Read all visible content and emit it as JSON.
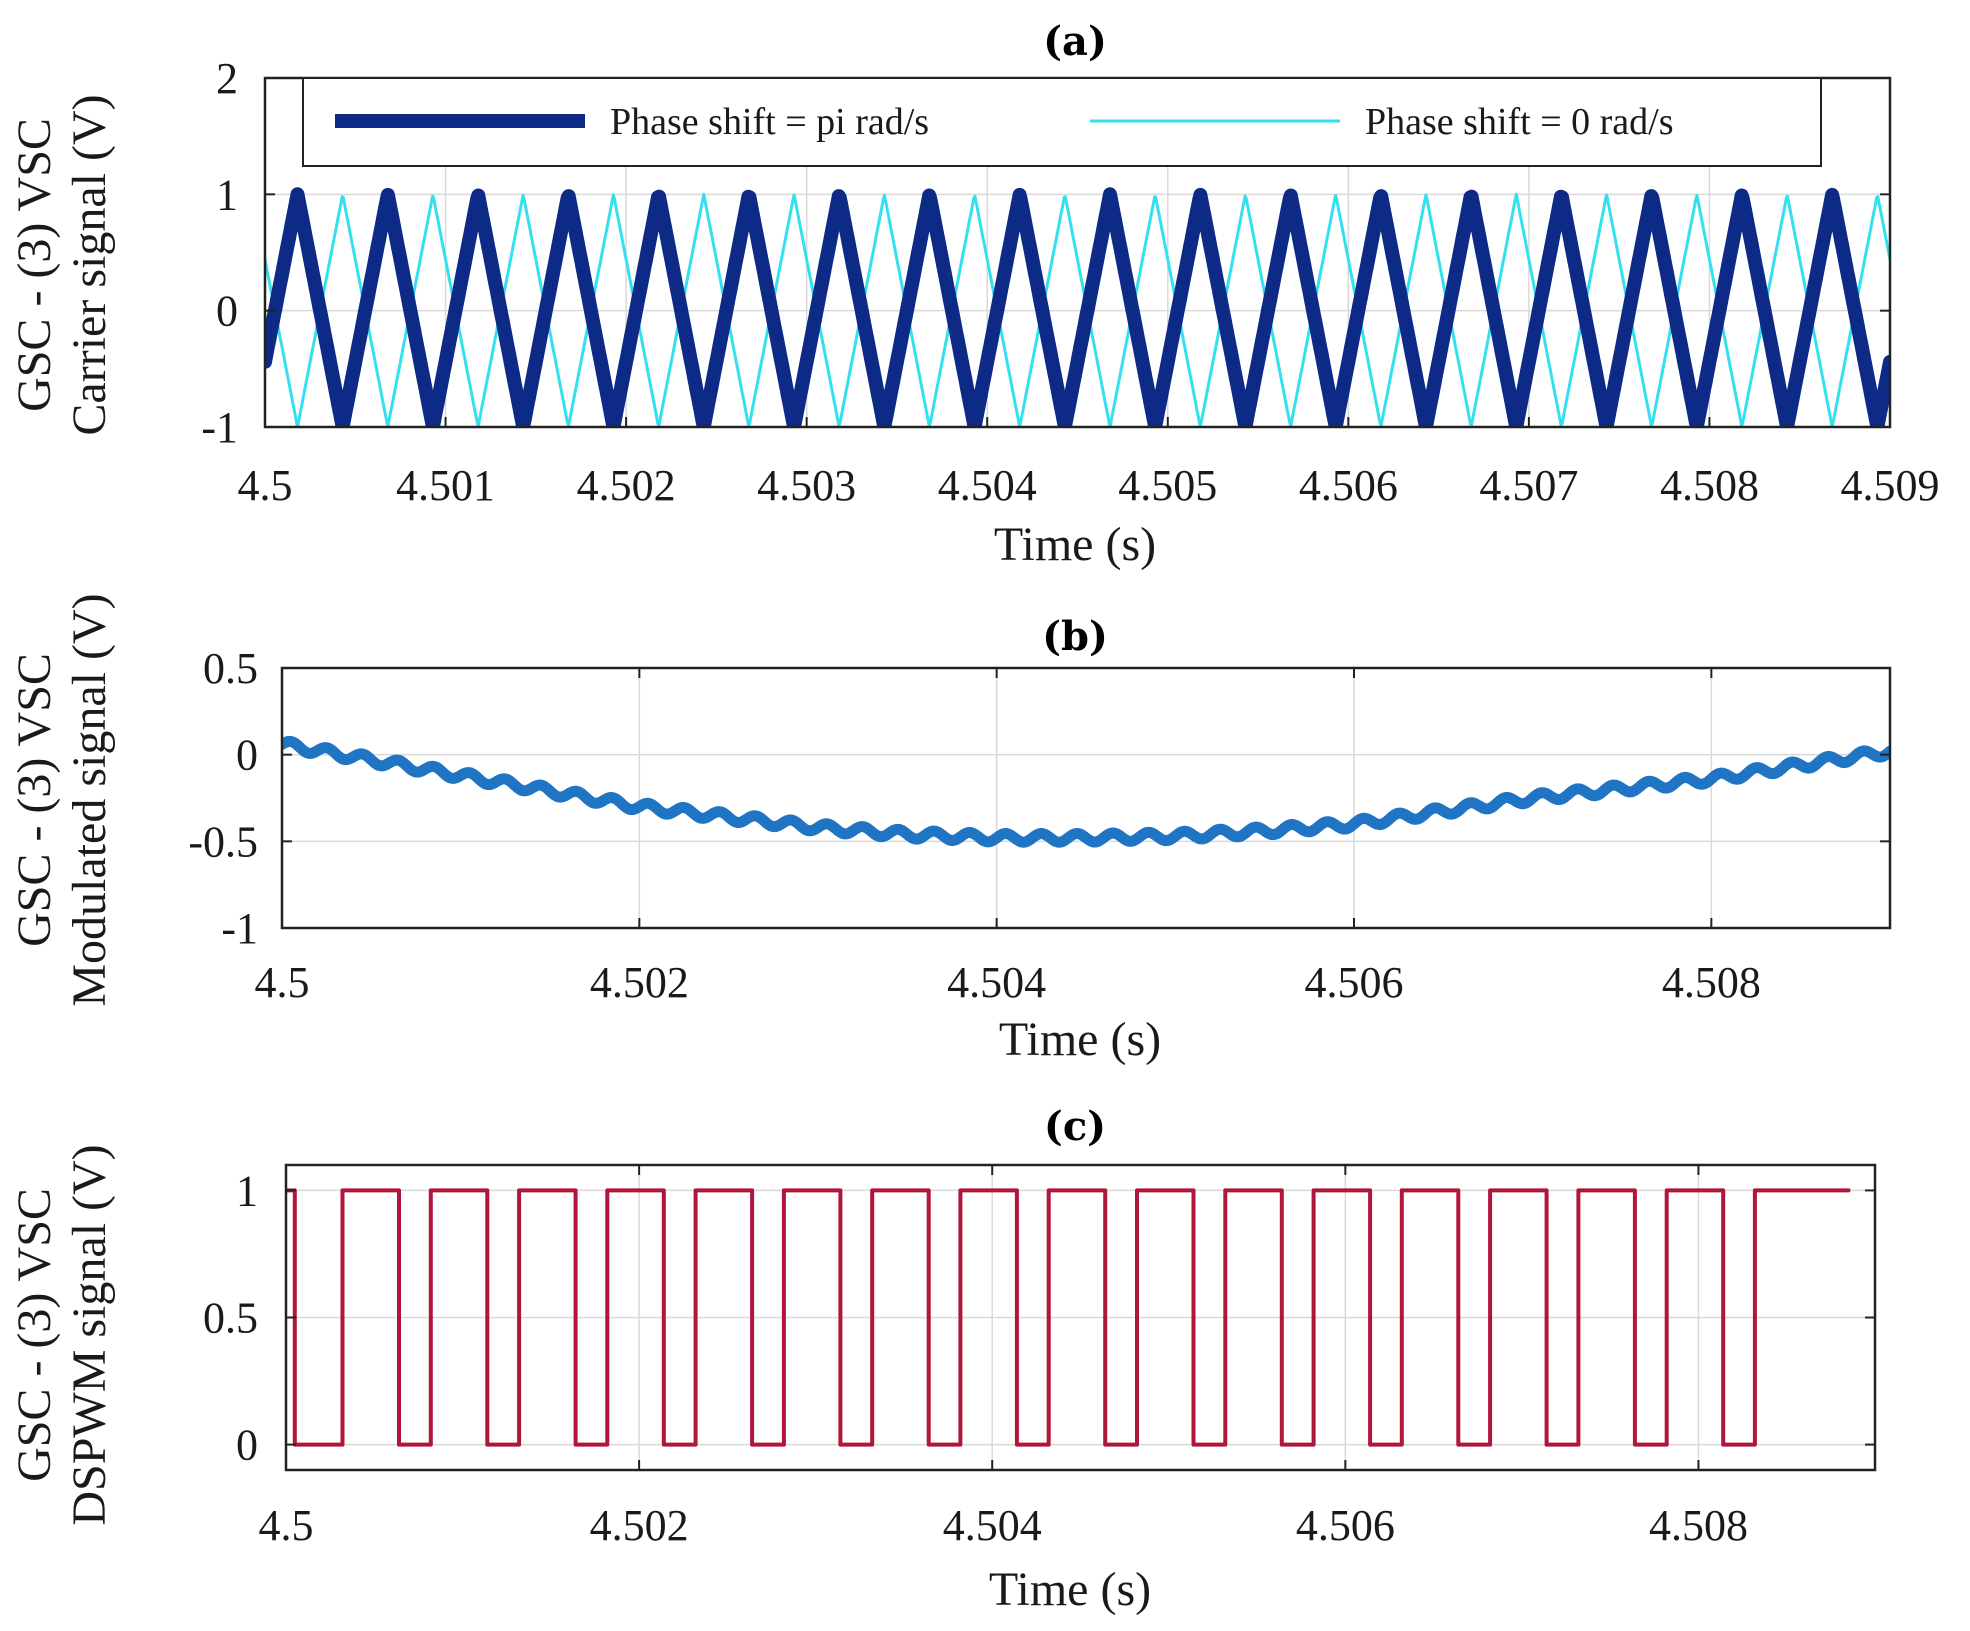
{
  "chart_data": [
    {
      "id": "a",
      "type": "line",
      "title": "(a)",
      "xlabel": "Time (s)",
      "ylabel_lines": [
        "GSC - (3) VSC",
        "Carrier signal (V)"
      ],
      "xlim": [
        4.5,
        4.509
      ],
      "ylim": [
        -1,
        2
      ],
      "xticks": [
        4.5,
        4.501,
        4.502,
        4.503,
        4.504,
        4.505,
        4.506,
        4.507,
        4.508,
        4.509
      ],
      "xtick_labels": [
        "4.5",
        "4.501",
        "4.502",
        "4.503",
        "4.504",
        "4.505",
        "4.506",
        "4.507",
        "4.508",
        "4.509"
      ],
      "yticks": [
        -1,
        0,
        1,
        2
      ],
      "ytick_labels": [
        "-1",
        "0",
        "1",
        "2"
      ],
      "grid": true,
      "legend_position": "top",
      "series": [
        {
          "name": "Phase shift = pi rad/s",
          "kind": "triangle",
          "amplitude": 1,
          "period_s": 0.0005,
          "first_peak_s": 4.50018,
          "color": "#0d2a86",
          "width": 14
        },
        {
          "name": "Phase shift = 0 rad/s",
          "kind": "triangle",
          "amplitude": 1,
          "period_s": 0.0005,
          "first_peak_s": 4.50043,
          "color": "#35e0ee",
          "width": 3
        }
      ]
    },
    {
      "id": "b",
      "type": "line",
      "title": "(b)",
      "xlabel": "Time (s)",
      "ylabel_lines": [
        "GSC - (3) VSC",
        "Modulated signal (V)"
      ],
      "xlim": [
        4.5,
        4.509
      ],
      "ylim": [
        -1,
        0.5
      ],
      "xticks": [
        4.5,
        4.502,
        4.504,
        4.506,
        4.508
      ],
      "xtick_labels": [
        "4.5",
        "4.502",
        "4.504",
        "4.506",
        "4.508"
      ],
      "yticks": [
        -1,
        -0.5,
        0,
        0.5
      ],
      "ytick_labels": [
        "-1",
        "-0.5",
        "0",
        "0.5"
      ],
      "grid": true,
      "series": [
        {
          "name": "Modulated signal",
          "kind": "points",
          "ripple_amplitude": 0.025,
          "ripple_period_s": 0.0002,
          "color": "#1f74c4",
          "width": 11,
          "x": [
            4.5,
            4.501,
            4.502,
            4.503,
            4.5035,
            4.504,
            4.5045,
            4.505,
            4.5055,
            4.506,
            4.507,
            4.508,
            4.509
          ],
          "y": [
            0.06,
            -0.12,
            -0.3,
            -0.42,
            -0.46,
            -0.48,
            -0.48,
            -0.47,
            -0.44,
            -0.4,
            -0.25,
            -0.14,
            0.02
          ]
        }
      ]
    },
    {
      "id": "c",
      "type": "line",
      "title": "(c)",
      "xlabel": "Time (s)",
      "ylabel_lines": [
        "GSC - (3) VSC",
        "DSPWM signal (V)"
      ],
      "xlim": [
        4.5,
        4.509
      ],
      "ylim": [
        -0.1,
        1.1
      ],
      "xticks": [
        4.5,
        4.502,
        4.504,
        4.506,
        4.508
      ],
      "xtick_labels": [
        "4.5",
        "4.502",
        "4.504",
        "4.506",
        "4.508"
      ],
      "yticks": [
        0,
        0.5,
        1
      ],
      "ytick_labels": [
        "0",
        "0.5",
        "1"
      ],
      "grid": true,
      "series": [
        {
          "name": "DSPWM signal",
          "kind": "pulse",
          "color": "#b0163a",
          "width": 4,
          "start_level": 1,
          "end_x": 4.50885,
          "rising_edges": [
            4.50032,
            4.50082,
            4.50132,
            4.50182,
            4.50232,
            4.50282,
            4.50332,
            4.50382,
            4.50432,
            4.50482,
            4.50532,
            4.50582,
            4.50632,
            4.50682,
            4.50732,
            4.50782,
            4.50832
          ],
          "falling_edges": [
            4.50005,
            4.50064,
            4.50114,
            4.50164,
            4.50214,
            4.50264,
            4.50314,
            4.50364,
            4.50414,
            4.50464,
            4.50514,
            4.50564,
            4.50614,
            4.50664,
            4.50714,
            4.50764,
            4.50814
          ]
        }
      ]
    }
  ]
}
